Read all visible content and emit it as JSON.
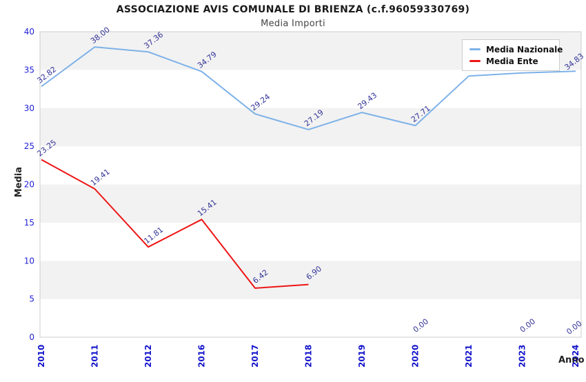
{
  "header": {
    "title": "ASSOCIAZIONE AVIS COMUNALE DI BRIENZA (c.f.96059330769)",
    "subtitle": "Media Importi"
  },
  "chart_data": {
    "type": "line",
    "title": "ASSOCIAZIONE AVIS COMUNALE DI BRIENZA (c.f.96059330769)",
    "subtitle": "Media Importi",
    "xlabel": "Anno",
    "ylabel": "Media",
    "ylim": [
      0,
      40
    ],
    "ytick_step": 5,
    "yticks": [
      "0",
      "5",
      "10",
      "15",
      "20",
      "25",
      "30",
      "35",
      "40"
    ],
    "categories": [
      "2010",
      "2011",
      "2012",
      "2016",
      "2017",
      "2018",
      "2019",
      "2020",
      "2021",
      "2023",
      "2024"
    ],
    "series": [
      {
        "name": "Media Nazionale",
        "color": "#7db2e8",
        "values": [
          32.82,
          38.0,
          37.36,
          34.79,
          29.24,
          27.19,
          29.43,
          27.71,
          34.2,
          34.6,
          34.83
        ],
        "labels": [
          "32.82",
          "38.00",
          "37.36",
          "34.79",
          "29.24",
          "27.19",
          "29.43",
          "27.71",
          null,
          null,
          "34.83"
        ],
        "line_to_index": 10
      },
      {
        "name": "Media Ente",
        "color": "#ee1414",
        "values": [
          23.25,
          19.41,
          11.81,
          15.41,
          6.42,
          6.9,
          null,
          0,
          null,
          0,
          0
        ],
        "labels": [
          "23.25",
          "19.41",
          "11.81",
          "15.41",
          "6.42",
          "6.90",
          null,
          "0.00",
          null,
          "0.00",
          "0.00"
        ],
        "line_to_index": 5
      }
    ],
    "legend_position": "top-right",
    "grid": "horizontal-bands",
    "band_color": "#f2f2f2",
    "plot_border_color": "#cccccc",
    "tick_color": "#1414cc",
    "value_label_color": "#333399"
  }
}
